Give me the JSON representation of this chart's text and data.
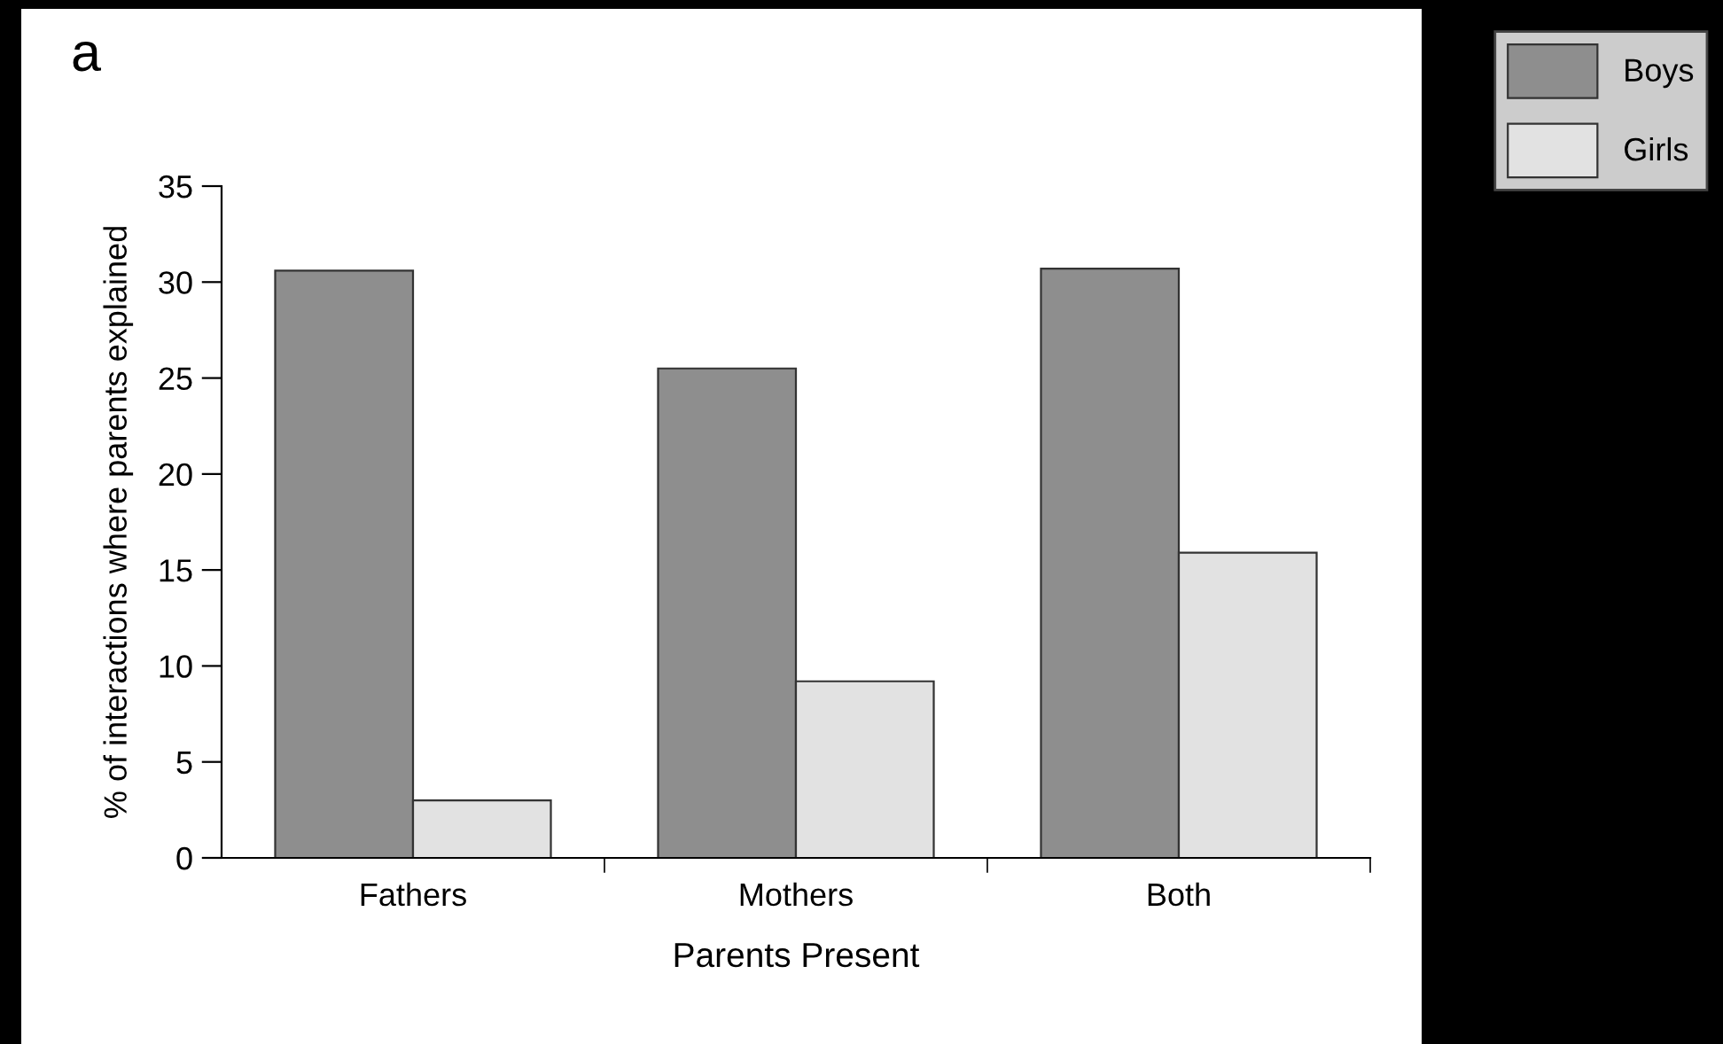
{
  "chart_data": {
    "type": "bar",
    "xlabel": "Parents Present",
    "ylabel": "% of interactions where parents explained",
    "categories": [
      "Fathers",
      "Mothers",
      "Both"
    ],
    "series": [
      {
        "name": "Boys",
        "color": "#8e8e8e",
        "values": [
          30.6,
          25.5,
          30.7
        ]
      },
      {
        "name": "Girls",
        "color": "#e2e2e2",
        "values": [
          3,
          9.2,
          15.9
        ]
      }
    ],
    "ylim": [
      0,
      35
    ],
    "yticks": [
      0,
      5,
      10,
      15,
      20,
      25,
      30,
      35
    ],
    "grid": false,
    "legend": "top right",
    "annotations": [
      "a"
    ]
  }
}
